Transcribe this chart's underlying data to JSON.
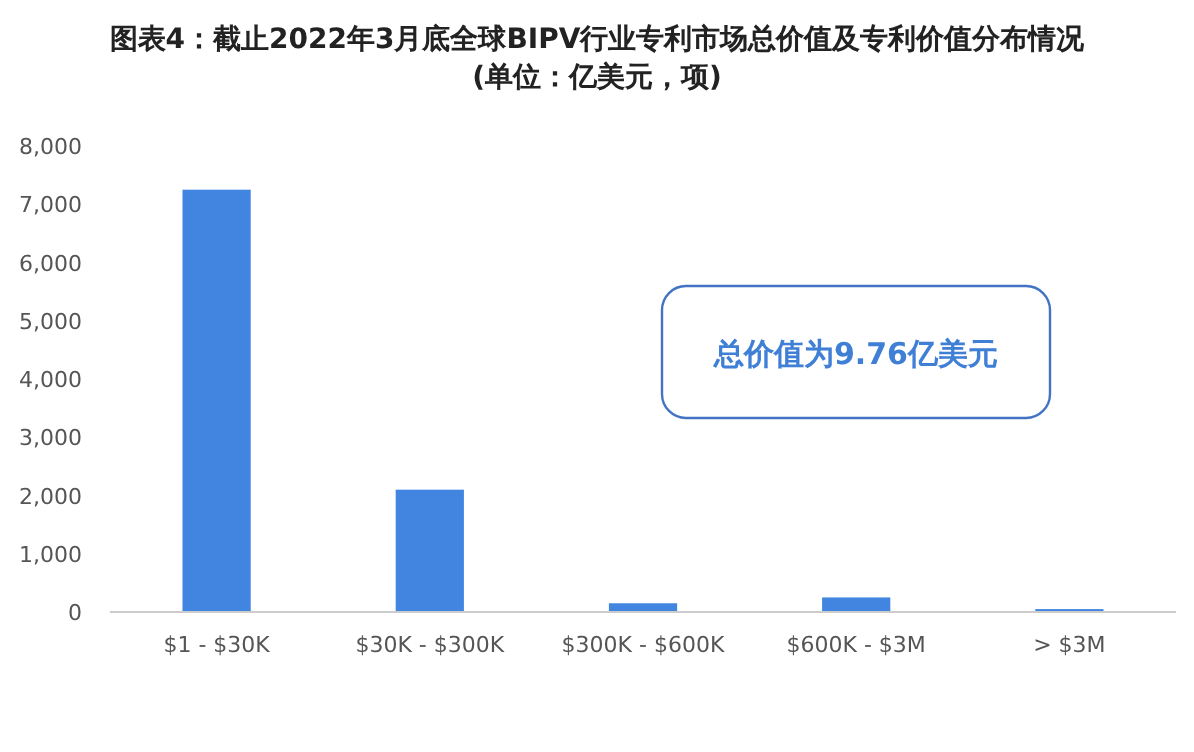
{
  "chart_data": {
    "type": "bar",
    "title": "图表4：截止2022年3月底全球BIPV行业专利市场总价值及专利价值分布情况",
    "subtitle": "(单位：亿美元，项)",
    "categories": [
      "$1 - $30K",
      "$30K - $300K",
      "$300K - $600K",
      "$600K - $3M",
      "> $3M"
    ],
    "values": [
      7250,
      2100,
      150,
      250,
      50
    ],
    "color": "#4185e0",
    "ylim": [
      0,
      8000
    ],
    "yticks": [
      {
        "value": 0,
        "label": "0"
      },
      {
        "value": 1000,
        "label": "1,000"
      },
      {
        "value": 2000,
        "label": "2,000"
      },
      {
        "value": 3000,
        "label": "3,000"
      },
      {
        "value": 4000,
        "label": "4,000"
      },
      {
        "value": 5000,
        "label": "5,000"
      },
      {
        "value": 6000,
        "label": "6,000"
      },
      {
        "value": 7000,
        "label": "7,000"
      },
      {
        "value": 8000,
        "label": "8,000"
      }
    ],
    "grid": false,
    "annotations": [
      "总价值为9.76亿美元"
    ]
  }
}
